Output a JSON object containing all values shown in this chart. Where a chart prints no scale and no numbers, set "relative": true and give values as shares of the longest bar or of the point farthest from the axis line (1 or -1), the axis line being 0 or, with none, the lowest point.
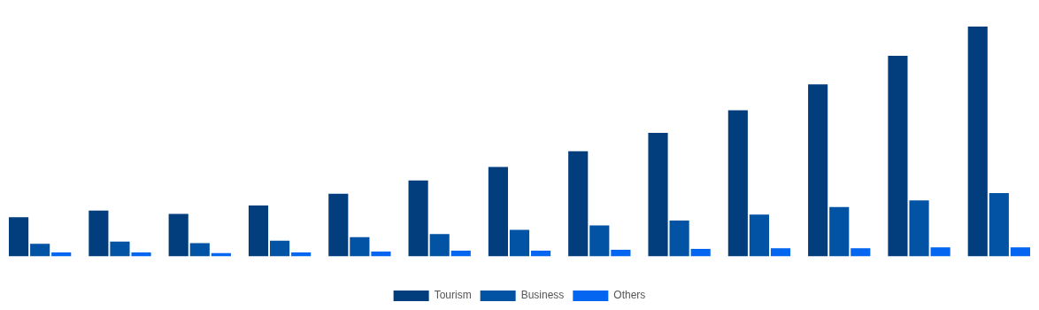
{
  "chart_data": {
    "type": "bar",
    "relative": true,
    "categories": [
      null,
      null,
      null,
      null,
      null,
      null,
      null,
      null,
      null,
      null,
      null,
      null,
      null
    ],
    "series": [
      {
        "name": "Tourism",
        "color": "#023e7d",
        "values": [
          0.171,
          0.2,
          0.185,
          0.222,
          0.273,
          0.331,
          0.389,
          0.458,
          0.538,
          0.636,
          0.749,
          0.873,
          1
        ]
      },
      {
        "name": "Business",
        "color": "#0353a4",
        "values": [
          0.055,
          0.065,
          0.058,
          0.069,
          0.084,
          0.098,
          0.116,
          0.135,
          0.156,
          0.182,
          0.215,
          0.244,
          0.276
        ]
      },
      {
        "name": "Others",
        "color": "#0466f0",
        "values": [
          0.018,
          0.018,
          0.015,
          0.018,
          0.022,
          0.025,
          0.025,
          0.029,
          0.033,
          0.036,
          0.036,
          0.04,
          0.04
        ]
      }
    ],
    "legend": "bottom",
    "grid": false
  }
}
